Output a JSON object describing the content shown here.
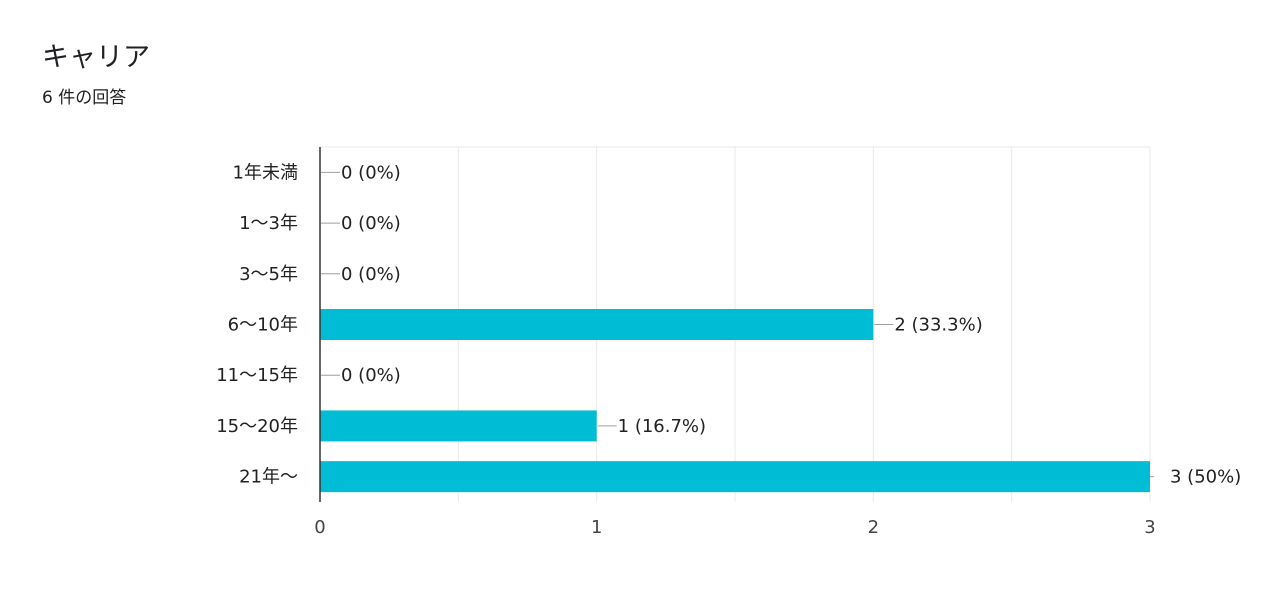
{
  "header": {
    "title": "キャリア",
    "subtitle": "6 件の回答"
  },
  "colors": {
    "bar": "#00bcd4",
    "axis": "#333333",
    "grid": "#e8e8e8",
    "leader": "#9e9e9e"
  },
  "chart_data": {
    "type": "bar",
    "orientation": "horizontal",
    "title": "キャリア",
    "subtitle": "6 件の回答",
    "categories": [
      "1年未満",
      "1〜3年",
      "3〜5年",
      "6〜10年",
      "11〜15年",
      "15〜20年",
      "21年〜"
    ],
    "values": [
      0,
      0,
      0,
      2,
      0,
      1,
      3
    ],
    "data_labels": [
      "0 (0%)",
      "0 (0%)",
      "0 (0%)",
      "2 (33.3%)",
      "0 (0%)",
      "1 (16.7%)",
      "3 (50%)"
    ],
    "x_ticks": [
      "0",
      "1",
      "2",
      "3"
    ],
    "xlim": [
      0,
      3
    ],
    "xlabel": "",
    "ylabel": "",
    "grid": true,
    "legend": "none"
  }
}
